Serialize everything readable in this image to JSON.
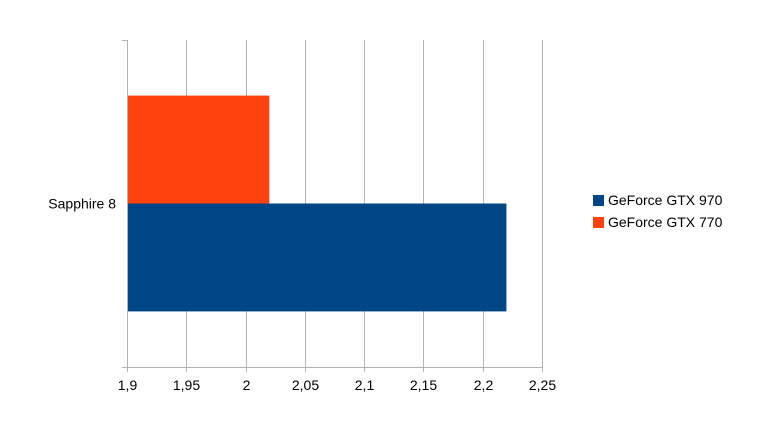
{
  "chart_data": {
    "type": "bar",
    "orientation": "horizontal",
    "categories": [
      "Sapphire 8"
    ],
    "series": [
      {
        "name": "GeForce GTX 970",
        "values": [
          2.22
        ],
        "color": "#004586"
      },
      {
        "name": "GeForce GTX 770",
        "values": [
          2.02
        ],
        "color": "#ff420e"
      }
    ],
    "xlim": [
      1.9,
      2.25
    ],
    "x_ticks": [
      1.9,
      1.95,
      2.0,
      2.05,
      2.1,
      2.15,
      2.2,
      2.25
    ],
    "x_tick_labels": [
      "1,9",
      "1,95",
      "2",
      "2,05",
      "2,1",
      "2,15",
      "2,2",
      "2,25"
    ],
    "grid": true,
    "legend_position": "right",
    "title": "",
    "xlabel": "",
    "ylabel": ""
  }
}
